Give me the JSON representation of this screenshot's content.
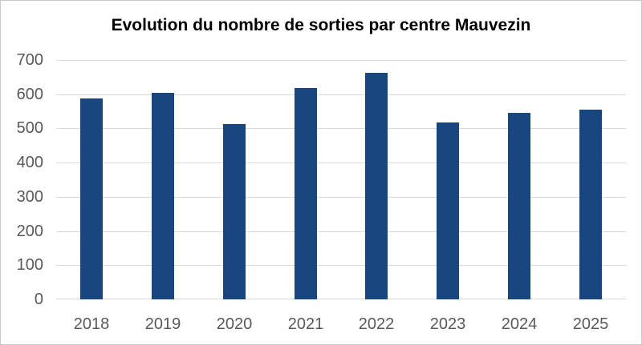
{
  "chart_data": {
    "type": "bar",
    "title": "Evolution du nombre de sorties par centre Mauvezin",
    "categories": [
      "2018",
      "2019",
      "2020",
      "2021",
      "2022",
      "2023",
      "2024",
      "2025"
    ],
    "values": [
      588,
      605,
      513,
      618,
      663,
      518,
      545,
      556
    ],
    "xlabel": "",
    "ylabel": "",
    "ylim": [
      0,
      700
    ],
    "y_ticks": [
      0,
      100,
      200,
      300,
      400,
      500,
      600,
      700
    ],
    "grid": true,
    "legend": "none",
    "colors": {
      "bar": "#17477E",
      "gridline": "#D9D9D9",
      "tick_label": "#595959",
      "title": "#000000",
      "frame_border": "#C8C8C8",
      "background": "#FFFFFF"
    }
  }
}
